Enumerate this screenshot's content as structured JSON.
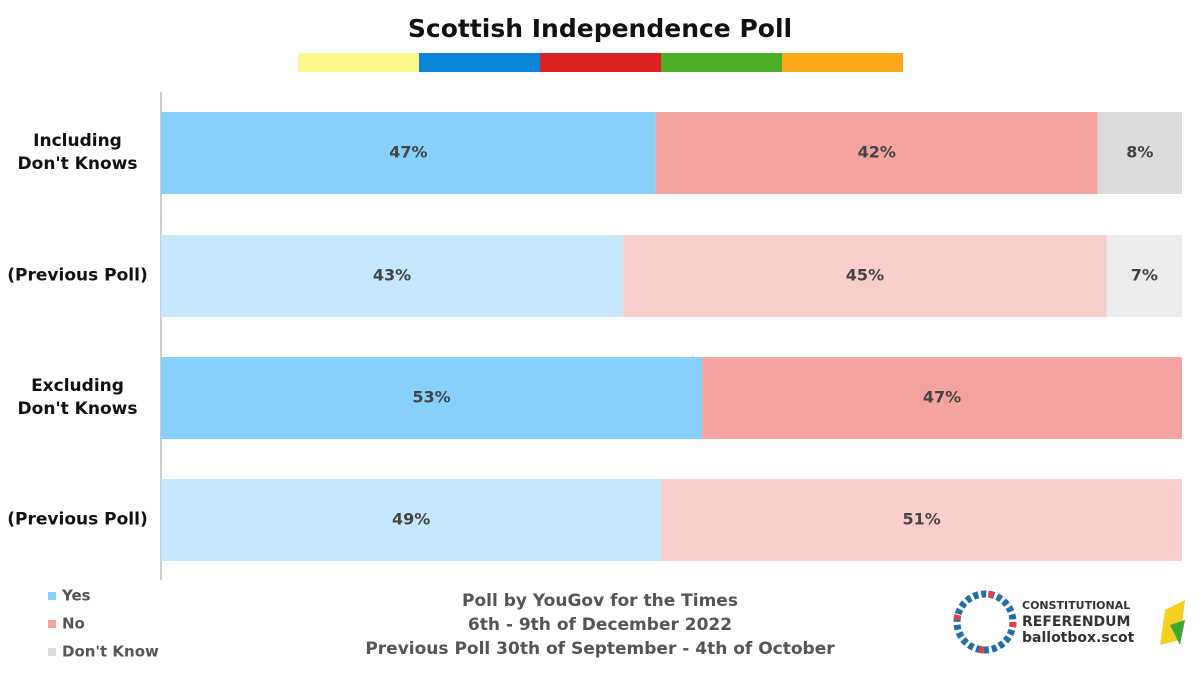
{
  "chart_data": {
    "type": "stacked_barh",
    "title": "Scottish Independence Poll",
    "categories": [
      "Including\nDon't Knows",
      "(Previous Poll)",
      "Excluding\nDon't Knows",
      "(Previous Poll)"
    ],
    "series": [
      {
        "name": "Yes",
        "color": "#87d0fb",
        "bar_colors": [
          "#87d0fb",
          "#c5e8fc",
          "#87d0fb",
          "#c5e8fc"
        ],
        "values": [
          47,
          43,
          53,
          49
        ],
        "value_labels": [
          "47%",
          "43%",
          "53%",
          "49%"
        ]
      },
      {
        "name": "No",
        "color": "#f4a3a0",
        "bar_colors": [
          "#f4a3a0",
          "#f9cfce",
          "#f4a3a0",
          "#f9cfce"
        ],
        "values": [
          42,
          45,
          47,
          51
        ],
        "value_labels": [
          "42%",
          "45%",
          "47%",
          "51%"
        ]
      },
      {
        "name": "Don't Know",
        "color": "#dcdcdc",
        "bar_colors": [
          "#dcdcdc",
          "#ececec",
          "#dcdcdc",
          "#ececec"
        ],
        "values": [
          8,
          7,
          null,
          null
        ],
        "value_labels": [
          "8%",
          "7%",
          null,
          null
        ]
      }
    ],
    "notes": [
      "Poll by YouGov for the Times",
      "6th - 9th of December 2022",
      "Previous Poll 30th of September - 4th of October"
    ],
    "logo": [
      "CONSTITUTIONAL",
      "REFERENDUM",
      "ballotbox.scot"
    ],
    "legend": "bottom-left"
  }
}
